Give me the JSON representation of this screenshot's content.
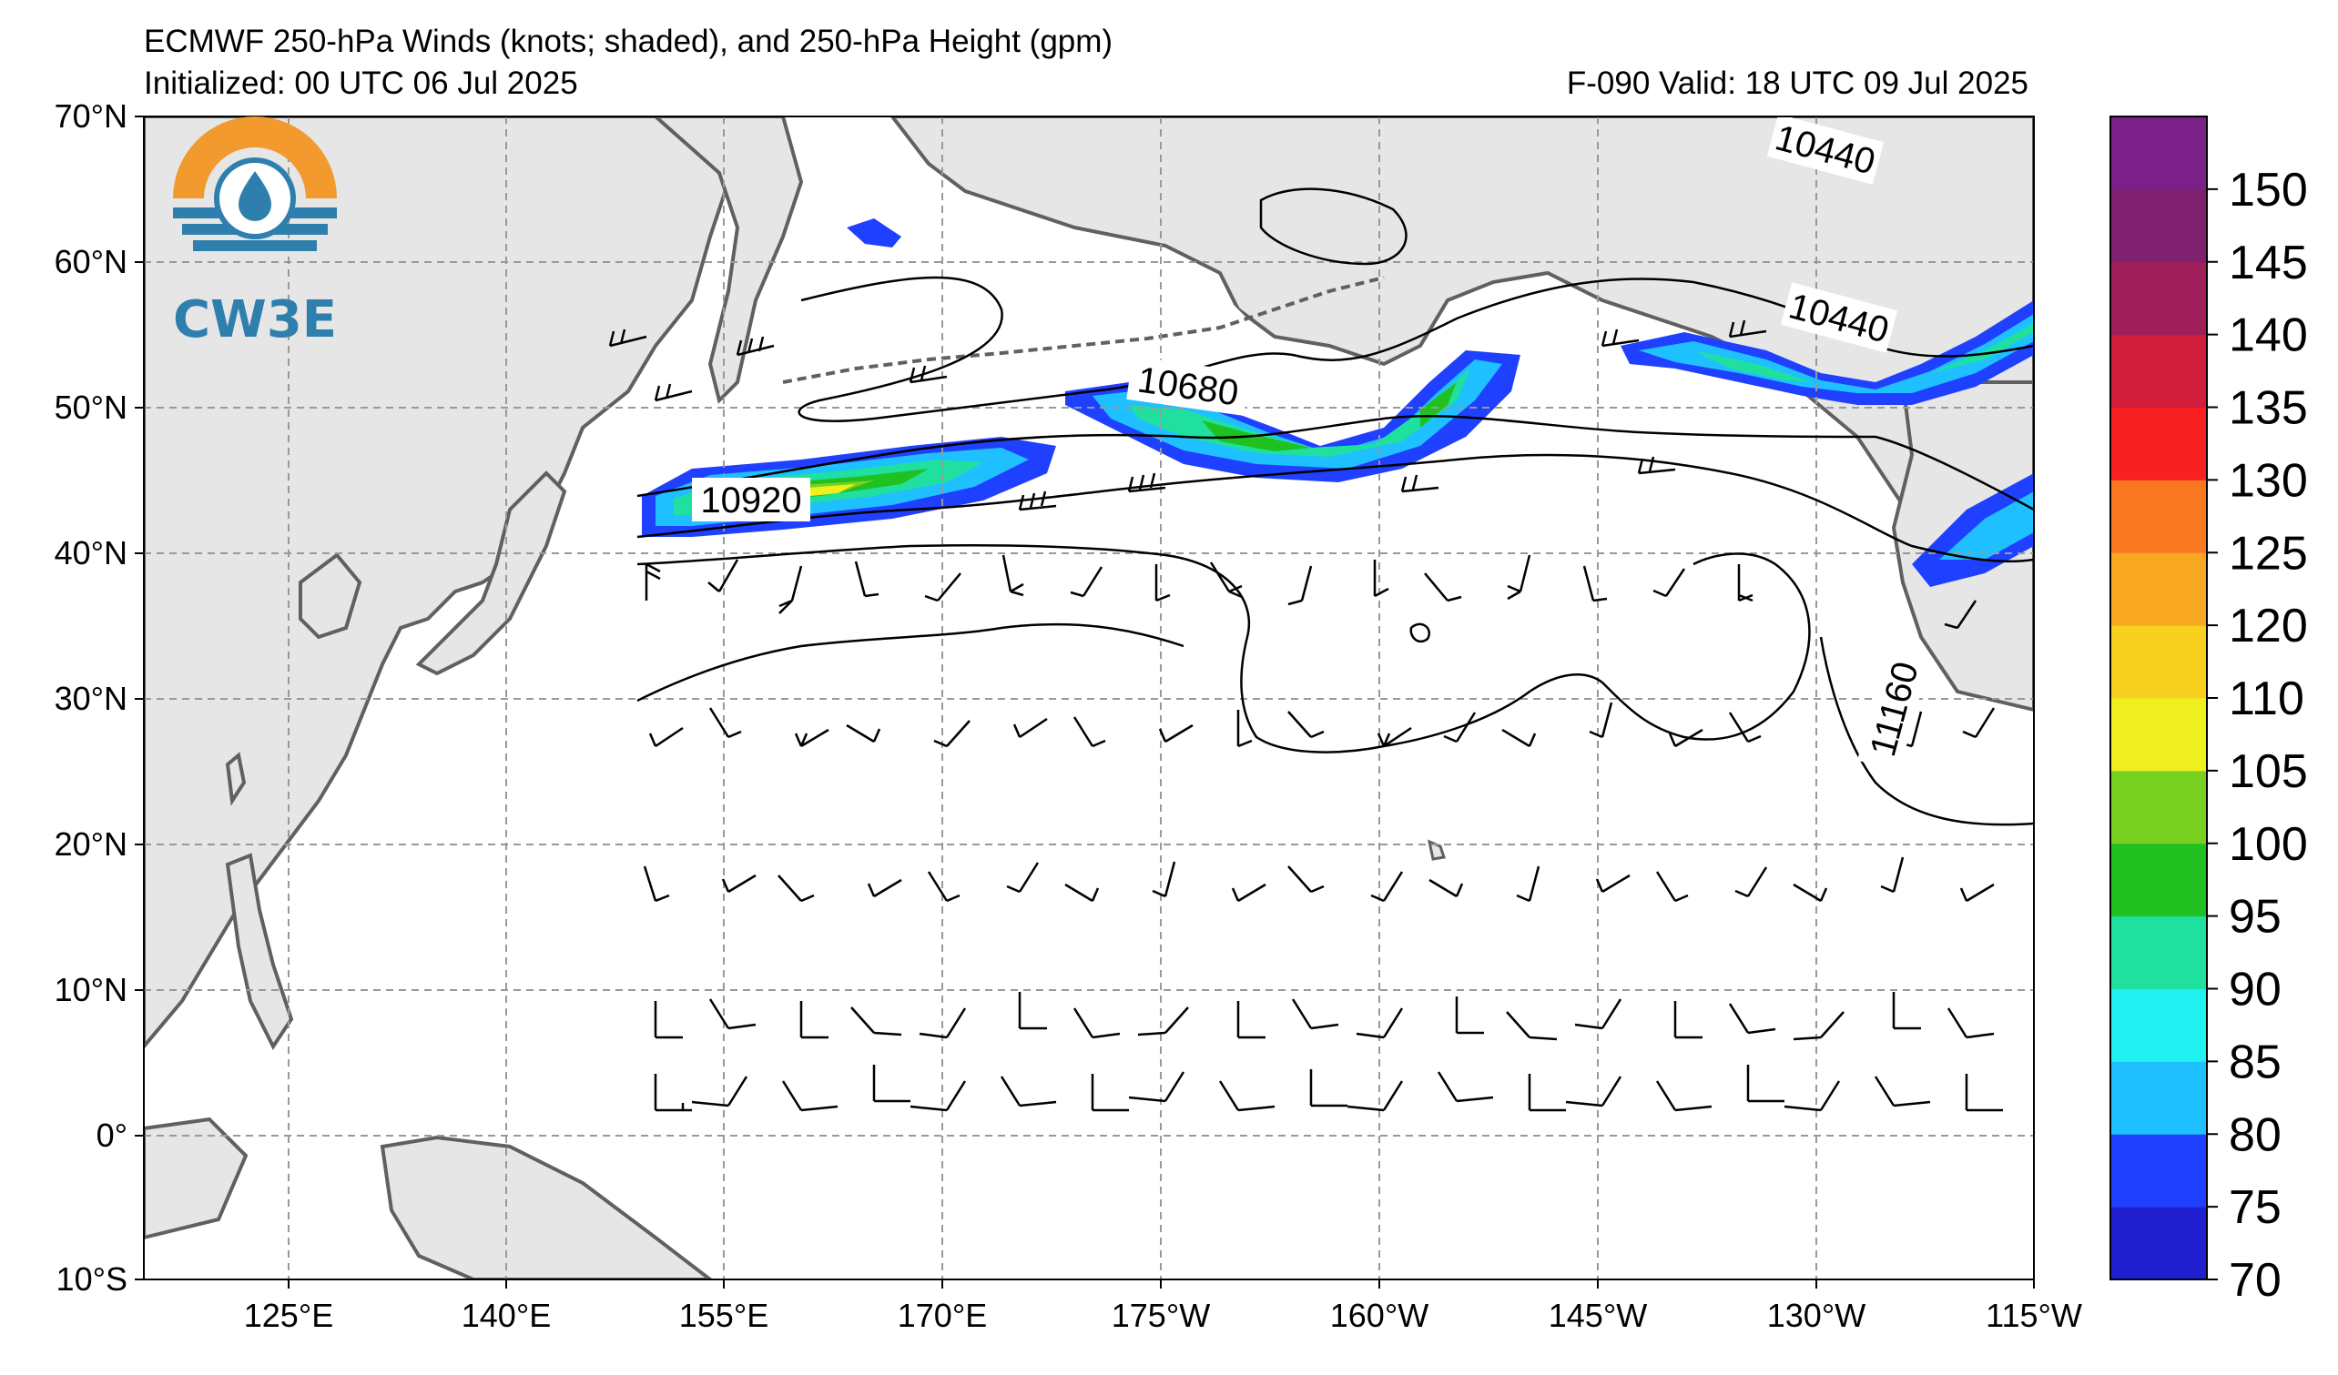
{
  "header": {
    "title": "ECMWF 250-hPa Winds (knots; shaded), and 250-hPa Height (gpm)",
    "initialized": "Initialized: 00 UTC 06 Jul 2025",
    "valid": "F-090  Valid: 18 UTC 09 Jul 2025"
  },
  "logo": {
    "text": "CW3E"
  },
  "map": {
    "lat_labels": [
      "70°N",
      "60°N",
      "50°N",
      "40°N",
      "30°N",
      "20°N",
      "10°N",
      "0°",
      "10°S"
    ],
    "lon_labels": [
      "125°E",
      "140°E",
      "155°E",
      "170°E",
      "175°W",
      "160°W",
      "145°W",
      "130°W",
      "115°W"
    ],
    "contour_labels": [
      "10440",
      "10440",
      "10680",
      "10920",
      "11160"
    ],
    "land_color": "#e6e6e6",
    "coast_color": "#606060"
  },
  "colorbar": {
    "labels": [
      "70",
      "75",
      "80",
      "85",
      "90",
      "95",
      "100",
      "105",
      "110",
      "120",
      "125",
      "130",
      "135",
      "140",
      "145",
      "150"
    ],
    "colors": [
      "#2020d0",
      "#2040ff",
      "#1ec0ff",
      "#20f0f0",
      "#20e0a0",
      "#20c020",
      "#78d020",
      "#f0f020",
      "#f8d020",
      "#f8a820",
      "#f87820",
      "#f82020",
      "#d01e3c",
      "#a01e5a",
      "#80206e",
      "#7a2088"
    ]
  }
}
